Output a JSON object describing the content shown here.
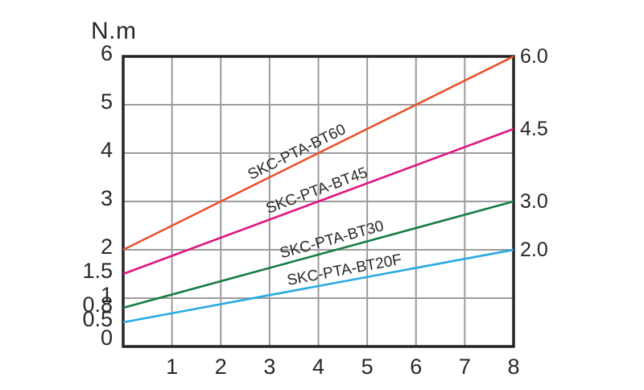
{
  "chart_data": {
    "type": "line",
    "title": "",
    "ylabel": "N.m",
    "xlabel": "",
    "xlim": [
      0,
      8
    ],
    "ylim": [
      0,
      6
    ],
    "grid": {
      "on": true,
      "x_lines": [
        1,
        2,
        3,
        4,
        5,
        6,
        7
      ],
      "y_lines": [
        1,
        2,
        3,
        4,
        5
      ],
      "color": "#9c9c9c"
    },
    "axis_color": "#262324",
    "text_color": "#2b2627",
    "legend": "inline-rotated-labels",
    "x_ticks": [
      {
        "v": 1,
        "label": "1"
      },
      {
        "v": 2,
        "label": "2"
      },
      {
        "v": 3,
        "label": "3"
      },
      {
        "v": 4,
        "label": "4"
      },
      {
        "v": 5,
        "label": "5"
      },
      {
        "v": 6,
        "label": "6"
      },
      {
        "v": 7,
        "label": "7"
      },
      {
        "v": 8,
        "label": "8"
      }
    ],
    "y_ticks": [
      {
        "v": 0,
        "label": "0"
      },
      {
        "v": 0.5,
        "label": "0.5"
      },
      {
        "v": 0.8,
        "label": "0.8"
      },
      {
        "v": 1,
        "label": "1"
      },
      {
        "v": 1.5,
        "label": "1.5"
      },
      {
        "v": 2,
        "label": "2"
      },
      {
        "v": 3,
        "label": "3"
      },
      {
        "v": 4,
        "label": "4"
      },
      {
        "v": 5,
        "label": "5"
      },
      {
        "v": 6,
        "label": "6"
      }
    ],
    "series": [
      {
        "name": "SKC-PTA-BT60",
        "color": "#e8542c",
        "x": [
          0,
          8
        ],
        "y": [
          2.0,
          6.0
        ],
        "end_label": "6.0",
        "label_anchor_x": 3.6
      },
      {
        "name": "SKC-PTA-BT45",
        "color": "#e01283",
        "x": [
          0,
          8
        ],
        "y": [
          1.5,
          4.5
        ],
        "end_label": "4.5",
        "label_anchor_x": 4.0
      },
      {
        "name": "SKC-PTA-BT30",
        "color": "#177c44",
        "x": [
          0,
          8
        ],
        "y": [
          0.8,
          3.0
        ],
        "end_label": "3.0",
        "label_anchor_x": 4.3
      },
      {
        "name": "SKC-PTA-BT20F",
        "color": "#29abe2",
        "x": [
          0,
          8
        ],
        "y": [
          0.5,
          2.0
        ],
        "end_label": "2.0",
        "label_anchor_x": 4.55
      }
    ]
  }
}
